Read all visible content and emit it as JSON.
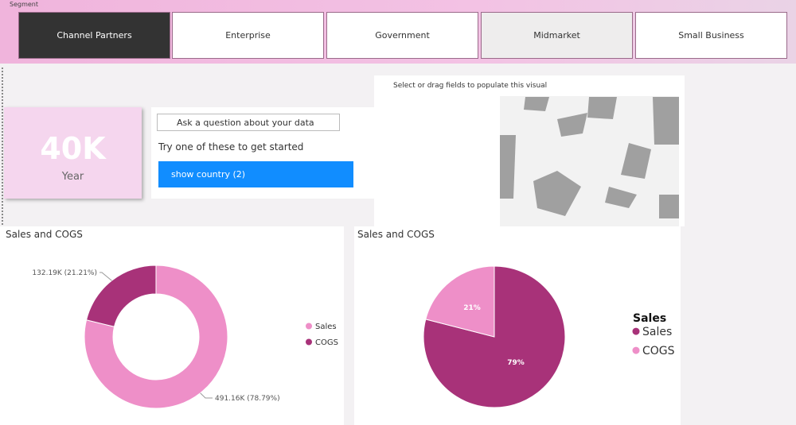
{
  "slicer": {
    "title": "Segment",
    "items": [
      "Channel Partners",
      "Enterprise",
      "Government",
      "Midmarket",
      "Small Business"
    ]
  },
  "card": {
    "value": "40K",
    "label": "Year"
  },
  "qna": {
    "placeholder": "Ask a question about your data",
    "prompt": "Try one of these to get started",
    "suggestion": "show country (2)"
  },
  "map": {
    "message": "Select or drag fields to populate this visual"
  },
  "chart_data": [
    {
      "type": "donut",
      "title": "Sales and COGS",
      "categories": [
        "Sales",
        "COGS"
      ],
      "values": [
        491160,
        132190
      ],
      "value_labels": [
        "491.16K (78.79%)",
        "132.19K (21.21%)"
      ],
      "colors": [
        "#ee8fc8",
        "#a83279"
      ]
    },
    {
      "type": "pie",
      "title": "Sales and COGS",
      "legend_title": "Sales",
      "categories": [
        "Sales",
        "COGS"
      ],
      "values": [
        79,
        21
      ],
      "value_labels": [
        "79%",
        "21%"
      ],
      "colors": [
        "#a83279",
        "#ee8fc8"
      ]
    }
  ]
}
